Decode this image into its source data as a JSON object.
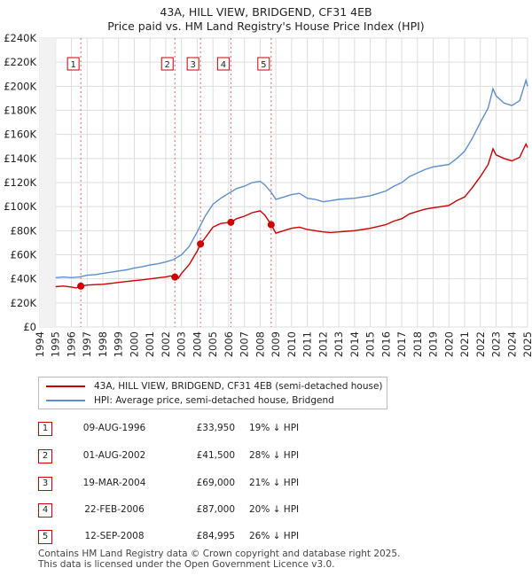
{
  "header": {
    "title": "43A, HILL VIEW, BRIDGEND, CF31 4EB",
    "subtitle": "Price paid vs. HM Land Registry's House Price Index (HPI)"
  },
  "colors": {
    "property": "#cc0000",
    "hpi": "#5b8fd0",
    "grid": "#dddddd",
    "vline": "#e06666"
  },
  "chart_data": {
    "type": "line",
    "title": "43A, HILL VIEW, BRIDGEND, CF31 4EB",
    "subtitle": "Price paid vs. HM Land Registry's House Price Index (HPI)",
    "xlim": [
      1994,
      2025
    ],
    "ylim": [
      0,
      240000
    ],
    "x_ticks": [
      1994,
      1995,
      1996,
      1997,
      1998,
      1999,
      2000,
      2001,
      2002,
      2003,
      2004,
      2005,
      2006,
      2007,
      2008,
      2009,
      2010,
      2011,
      2012,
      2013,
      2014,
      2015,
      2016,
      2017,
      2018,
      2019,
      2020,
      2021,
      2022,
      2023,
      2024,
      2025
    ],
    "y_ticks": [
      0,
      20000,
      40000,
      60000,
      80000,
      100000,
      120000,
      140000,
      160000,
      180000,
      200000,
      220000,
      240000
    ],
    "y_tick_labels": [
      "£0",
      "£20K",
      "£40K",
      "£60K",
      "£80K",
      "£100K",
      "£120K",
      "£140K",
      "£160K",
      "£180K",
      "£200K",
      "£220K",
      "£240K"
    ],
    "grid": true,
    "series": [
      {
        "name": "43A, HILL VIEW, BRIDGEND, CF31 4EB (semi-detached house)",
        "color": "#cc0000",
        "points": [
          [
            1995.0,
            33500
          ],
          [
            1995.5,
            34000
          ],
          [
            1996.0,
            33200
          ],
          [
            1996.3,
            32500
          ],
          [
            1996.6,
            33950
          ],
          [
            1997.0,
            34800
          ],
          [
            1997.5,
            35200
          ],
          [
            1998.0,
            35500
          ],
          [
            1998.5,
            36200
          ],
          [
            1999.0,
            37000
          ],
          [
            1999.5,
            37800
          ],
          [
            2000.0,
            38500
          ],
          [
            2000.5,
            39200
          ],
          [
            2001.0,
            40000
          ],
          [
            2001.5,
            40800
          ],
          [
            2002.0,
            41500
          ],
          [
            2002.3,
            42500
          ],
          [
            2002.58,
            41500
          ],
          [
            2002.8,
            40500
          ],
          [
            2003.0,
            44500
          ],
          [
            2003.5,
            52000
          ],
          [
            2004.0,
            63000
          ],
          [
            2004.21,
            69000
          ],
          [
            2004.5,
            74000
          ],
          [
            2005.0,
            83000
          ],
          [
            2005.5,
            86000
          ],
          [
            2006.14,
            87000
          ],
          [
            2006.5,
            90000
          ],
          [
            2007.0,
            92000
          ],
          [
            2007.5,
            95000
          ],
          [
            2008.0,
            96500
          ],
          [
            2008.3,
            93000
          ],
          [
            2008.7,
            84995
          ],
          [
            2009.0,
            78000
          ],
          [
            2009.5,
            80000
          ],
          [
            2010.0,
            82000
          ],
          [
            2010.5,
            83000
          ],
          [
            2011.0,
            81000
          ],
          [
            2011.5,
            80000
          ],
          [
            2012.0,
            79000
          ],
          [
            2012.5,
            78500
          ],
          [
            2013.0,
            79000
          ],
          [
            2013.5,
            79500
          ],
          [
            2014.0,
            80000
          ],
          [
            2014.5,
            81000
          ],
          [
            2015.0,
            82000
          ],
          [
            2015.5,
            83500
          ],
          [
            2016.0,
            85000
          ],
          [
            2016.5,
            88000
          ],
          [
            2017.0,
            90000
          ],
          [
            2017.5,
            94000
          ],
          [
            2018.0,
            96000
          ],
          [
            2018.5,
            98000
          ],
          [
            2019.0,
            99000
          ],
          [
            2019.5,
            100000
          ],
          [
            2020.0,
            101000
          ],
          [
            2020.5,
            105000
          ],
          [
            2021.0,
            108000
          ],
          [
            2021.5,
            116000
          ],
          [
            2022.0,
            125000
          ],
          [
            2022.5,
            135000
          ],
          [
            2022.8,
            148000
          ],
          [
            2023.0,
            143000
          ],
          [
            2023.5,
            140000
          ],
          [
            2024.0,
            138000
          ],
          [
            2024.5,
            141000
          ],
          [
            2024.9,
            152000
          ],
          [
            2025.0,
            149000
          ]
        ]
      },
      {
        "name": "HPI: Average price, semi-detached house, Bridgend",
        "color": "#5b8fd0",
        "points": [
          [
            1995.0,
            41000
          ],
          [
            1995.5,
            41500
          ],
          [
            1996.0,
            41000
          ],
          [
            1996.5,
            41500
          ],
          [
            1997.0,
            43000
          ],
          [
            1997.5,
            43500
          ],
          [
            1998.0,
            44500
          ],
          [
            1998.5,
            45500
          ],
          [
            1999.0,
            46500
          ],
          [
            1999.5,
            47500
          ],
          [
            2000.0,
            49000
          ],
          [
            2000.5,
            50000
          ],
          [
            2001.0,
            51500
          ],
          [
            2001.5,
            52500
          ],
          [
            2002.0,
            54000
          ],
          [
            2002.5,
            56000
          ],
          [
            2003.0,
            60000
          ],
          [
            2003.5,
            67000
          ],
          [
            2004.0,
            79000
          ],
          [
            2004.5,
            92000
          ],
          [
            2005.0,
            102000
          ],
          [
            2005.5,
            107000
          ],
          [
            2006.0,
            111000
          ],
          [
            2006.5,
            115000
          ],
          [
            2007.0,
            117000
          ],
          [
            2007.5,
            120000
          ],
          [
            2008.0,
            121000
          ],
          [
            2008.3,
            118000
          ],
          [
            2008.7,
            112000
          ],
          [
            2009.0,
            106000
          ],
          [
            2009.5,
            108000
          ],
          [
            2010.0,
            110000
          ],
          [
            2010.5,
            111000
          ],
          [
            2011.0,
            107000
          ],
          [
            2011.5,
            106000
          ],
          [
            2012.0,
            104000
          ],
          [
            2012.5,
            105000
          ],
          [
            2013.0,
            106000
          ],
          [
            2013.5,
            106500
          ],
          [
            2014.0,
            107000
          ],
          [
            2014.5,
            108000
          ],
          [
            2015.0,
            109000
          ],
          [
            2015.5,
            111000
          ],
          [
            2016.0,
            113000
          ],
          [
            2016.5,
            117000
          ],
          [
            2017.0,
            120000
          ],
          [
            2017.5,
            125000
          ],
          [
            2018.0,
            128000
          ],
          [
            2018.5,
            131000
          ],
          [
            2019.0,
            133000
          ],
          [
            2019.5,
            134000
          ],
          [
            2020.0,
            135000
          ],
          [
            2020.5,
            140000
          ],
          [
            2021.0,
            146000
          ],
          [
            2021.5,
            157000
          ],
          [
            2022.0,
            170000
          ],
          [
            2022.5,
            182000
          ],
          [
            2022.8,
            198000
          ],
          [
            2023.0,
            192000
          ],
          [
            2023.5,
            186000
          ],
          [
            2024.0,
            184000
          ],
          [
            2024.5,
            188000
          ],
          [
            2024.9,
            205000
          ],
          [
            2025.0,
            200000
          ]
        ]
      }
    ],
    "transactions": [
      {
        "num": "1",
        "x": 1996.6,
        "y": 33950,
        "date": "09-AUG-1996",
        "price": "£33,950",
        "hpi": "19% ↓ HPI"
      },
      {
        "num": "2",
        "x": 2002.58,
        "y": 41500,
        "date": "01-AUG-2002",
        "price": "£41,500",
        "hpi": "28% ↓ HPI"
      },
      {
        "num": "3",
        "x": 2004.21,
        "y": 69000,
        "date": "19-MAR-2004",
        "price": "£69,000",
        "hpi": "21% ↓ HPI"
      },
      {
        "num": "4",
        "x": 2006.14,
        "y": 87000,
        "date": "22-FEB-2006",
        "price": "£87,000",
        "hpi": "20% ↓ HPI"
      },
      {
        "num": "5",
        "x": 2008.7,
        "y": 84995,
        "date": "12-SEP-2008",
        "price": "£84,995",
        "hpi": "26% ↓ HPI"
      }
    ]
  },
  "legend": {
    "property_label": "43A, HILL VIEW, BRIDGEND, CF31 4EB (semi-detached house)",
    "hpi_label": "HPI: Average price, semi-detached house, Bridgend"
  },
  "footer": {
    "line1": "Contains HM Land Registry data © Crown copyright and database right 2025.",
    "line2": "This data is licensed under the Open Government Licence v3.0."
  }
}
